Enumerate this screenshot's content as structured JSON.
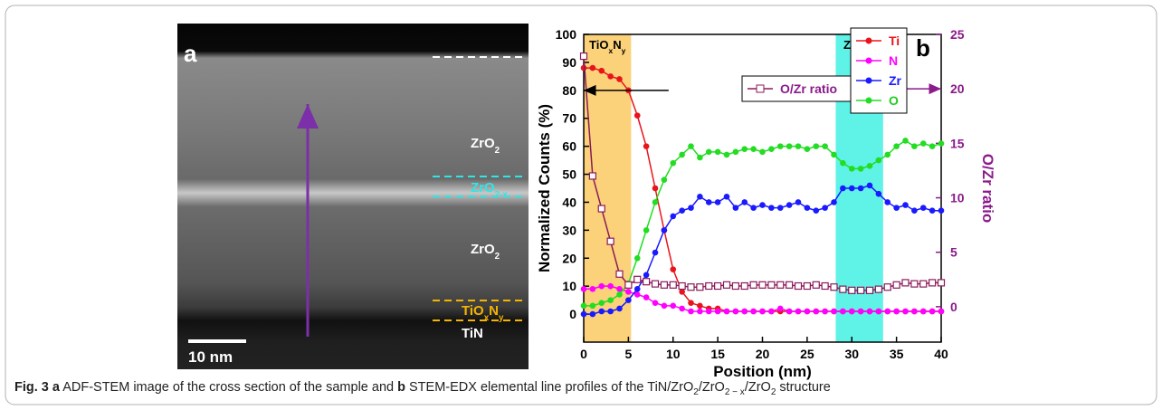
{
  "figure": {
    "panel_a": {
      "label": "a",
      "layers": [
        {
          "parts": [
            "ZrO",
            "2"
          ]
        },
        {
          "parts": [
            "ZrO",
            "2-x"
          ]
        },
        {
          "parts": [
            "ZrO",
            "2"
          ]
        },
        {
          "parts": [
            "TiO",
            "x",
            "N",
            "y"
          ]
        },
        {
          "parts": [
            "TiN"
          ]
        }
      ],
      "scale_bar": "10 nm"
    },
    "caption": [
      {
        "text": "Fig. 3 a",
        "style": "bold"
      },
      {
        "text": " ADF-STEM image of the cross section of the sample and ",
        "style": "normal"
      },
      {
        "text": "b",
        "style": "bold"
      },
      {
        "text": " STEM-EDX elemental line profiles of the TiN/ZrO",
        "style": "normal"
      },
      {
        "text": "2",
        "style": "sub"
      },
      {
        "text": "/ZrO",
        "style": "normal"
      },
      {
        "text": "2 − x",
        "style": "sub"
      },
      {
        "text": "/ZrO",
        "style": "normal"
      },
      {
        "text": "2",
        "style": "sub"
      },
      {
        "text": " structure",
        "style": "normal"
      }
    ]
  },
  "chart_data": {
    "type": "line",
    "panel_label": "b",
    "xlabel": "Position (nm)",
    "ylabel": "Normalized Counts (%)",
    "y2label": "O/Zr ratio",
    "y2color": "#8b1a8b",
    "x": [
      0,
      1,
      2,
      3,
      4,
      5,
      6,
      7,
      8,
      9,
      10,
      11,
      12,
      13,
      14,
      15,
      16,
      17,
      18,
      19,
      20,
      21,
      22,
      23,
      24,
      25,
      26,
      27,
      28,
      29,
      30,
      31,
      32,
      33,
      34,
      35,
      36,
      37,
      38,
      39,
      40
    ],
    "xlim": [
      0,
      40
    ],
    "xticks": [
      0,
      5,
      10,
      15,
      20,
      25,
      30,
      35,
      40
    ],
    "ylim": [
      -10,
      100
    ],
    "yticks": [
      0,
      10,
      20,
      30,
      40,
      50,
      60,
      70,
      80,
      90,
      100
    ],
    "y2lim": [
      -3.25,
      25
    ],
    "y2ticks": [
      0,
      5,
      10,
      15,
      20,
      25
    ],
    "bands": [
      {
        "xrange": [
          0,
          5.3
        ],
        "color": "#fbd27a",
        "parts": [
          "TiO",
          "x",
          "N",
          "y"
        ]
      },
      {
        "xrange": [
          28.2,
          33.5
        ],
        "color": "#5ff2e6",
        "parts": [
          "ZrO",
          "2-x"
        ]
      }
    ],
    "arrows": [
      {
        "axis": "y",
        "value": 80,
        "x": [
          9.5,
          0
        ],
        "color": "#000000"
      },
      {
        "axis": "y2",
        "value": 20,
        "x": [
          25,
          40
        ],
        "color": "#8b1a8b"
      }
    ],
    "series": [
      {
        "name": "Ti",
        "color": "#e8141c",
        "marker": "circle",
        "values": [
          88,
          88,
          87,
          85,
          84,
          80,
          71,
          60,
          45,
          30,
          16,
          8,
          4,
          3,
          2,
          2,
          1,
          1,
          1,
          1,
          1,
          1,
          1,
          1,
          1,
          1,
          1,
          1,
          1,
          1,
          1,
          1,
          1,
          1,
          1,
          1,
          1,
          1,
          1,
          1,
          1
        ]
      },
      {
        "name": "N",
        "color": "#ff00ff",
        "marker": "circle",
        "values": [
          9,
          9,
          10,
          10,
          9,
          8,
          7,
          6,
          4,
          3,
          3,
          2,
          1,
          1,
          1,
          1,
          1,
          1,
          1,
          1,
          1,
          1,
          2,
          1,
          1,
          1,
          1,
          1,
          1,
          1,
          1,
          1,
          1,
          1,
          1,
          1,
          1,
          1,
          1,
          1,
          1
        ]
      },
      {
        "name": "Zr",
        "color": "#1a1aff",
        "marker": "circle",
        "values": [
          0,
          0,
          1,
          1,
          2,
          5,
          9,
          14,
          22,
          30,
          35,
          37,
          38,
          42,
          40,
          40,
          42,
          38,
          40,
          38,
          39,
          38,
          38,
          39,
          40,
          38,
          37,
          38,
          40,
          45,
          45,
          45,
          46,
          43,
          40,
          38,
          39,
          37,
          38,
          37,
          37
        ]
      },
      {
        "name": "O",
        "color": "#22dd22",
        "marker": "circle",
        "values": [
          3,
          3,
          4,
          5,
          7,
          11,
          20,
          30,
          40,
          48,
          54,
          57,
          60,
          56,
          58,
          58,
          57,
          58,
          59,
          59,
          58,
          59,
          60,
          60,
          60,
          59,
          60,
          60,
          57,
          54,
          52,
          52,
          53,
          55,
          57,
          60,
          62,
          60,
          61,
          60,
          61
        ]
      },
      {
        "name": "O/Zr ratio",
        "color": "#8b1a5a",
        "marker": "square-open",
        "axis": "y2",
        "values": [
          23,
          12,
          9,
          6,
          3,
          2,
          2.5,
          2.3,
          2.1,
          2,
          2,
          1.9,
          1.8,
          1.8,
          1.9,
          1.9,
          2,
          1.9,
          1.9,
          2,
          2,
          2,
          2,
          2,
          1.9,
          1.9,
          2,
          1.9,
          1.8,
          1.6,
          1.5,
          1.5,
          1.5,
          1.6,
          1.8,
          2,
          2.2,
          2.1,
          2.1,
          2.2,
          2.2
        ]
      }
    ]
  }
}
